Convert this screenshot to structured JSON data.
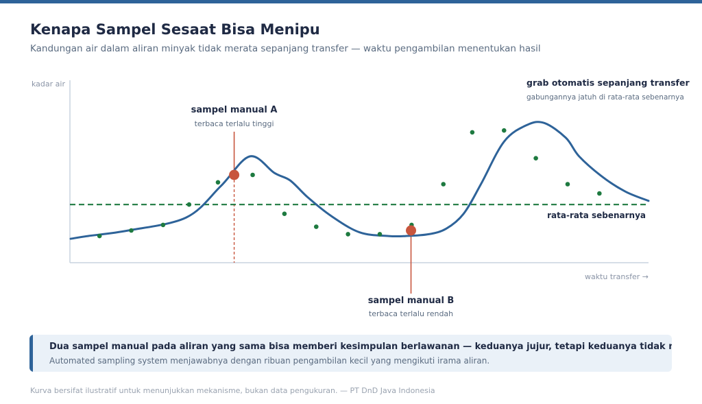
{
  "header": {
    "title": "Kenapa Sampel Sesaat Bisa Menipu",
    "subtitle": "Kandungan air dalam aliran minyak tidak merata sepanjang transfer — waktu pengambilan menentukan hasil"
  },
  "chart_data": {
    "type": "line",
    "ylabel": "kadar air",
    "xlabel": "waktu transfer →",
    "xlim": [
      0,
      100
    ],
    "ylim": [
      0,
      100
    ],
    "grid": false,
    "series": [
      {
        "style": "curve",
        "x": [
          0,
          3,
          10,
          20,
          26,
          31,
          35.3,
          38,
          41,
          45,
          50,
          55,
          58,
          62,
          65,
          68,
          71,
          75,
          79,
          82,
          85.7,
          88,
          92,
          96,
          100
        ],
        "values": [
          15.5,
          17,
          20,
          27,
          44,
          60,
          51,
          47,
          38,
          28,
          19,
          17,
          17,
          18,
          21,
          29,
          45,
          68,
          77,
          78,
          70,
          60,
          49,
          41,
          36
        ]
      },
      {
        "style": "dots",
        "x": [
          5,
          10.5,
          16,
          20.5,
          25.5,
          31.5,
          37,
          42.5,
          48,
          53.5,
          59,
          64.5,
          69.5,
          75,
          80.5,
          86,
          91.5
        ],
        "values": [
          17,
          20,
          23,
          34,
          46,
          50,
          29,
          22,
          18,
          18,
          23,
          45,
          73,
          74,
          59,
          45,
          40
        ]
      }
    ],
    "reference_line": {
      "value": 34,
      "label": "rata-rata sebenarnya",
      "color": "#1e7a40"
    },
    "samples": [
      {
        "x": 28.3,
        "y": 50,
        "label": "sampel manual A",
        "note": "terbaca terlalu tinggi",
        "color": "#c8553d",
        "style": "dashed",
        "position": "above"
      },
      {
        "x": 58.9,
        "y": 20,
        "label": "sampel manual B",
        "note": "terbaca terlalu rendah",
        "color": "#c8553d",
        "style": "solid",
        "position": "below"
      }
    ],
    "annotation": {
      "title": "grab otomatis sepanjang transfer",
      "note": "gabungannya jatuh di rata-rata sebenarnya"
    },
    "colors": {
      "curve": "#2e6399",
      "dots": "#1e7a40",
      "axis": "#c9d3df",
      "sample": "#c8553d"
    }
  },
  "callout": {
    "main": "Dua sampel manual pada aliran yang sama bisa memberi kesimpulan berlawanan — keduanya jujur, tetapi keduanya tidak mewakili.",
    "sub": "Automated sampling system menjawabnya dengan ribuan pengambilan kecil yang mengikuti irama aliran."
  },
  "footer": "Kurva bersifat ilustratif untuk menunjukkan mekanisme, bukan data pengukuran. — PT DnD Java Indonesia"
}
